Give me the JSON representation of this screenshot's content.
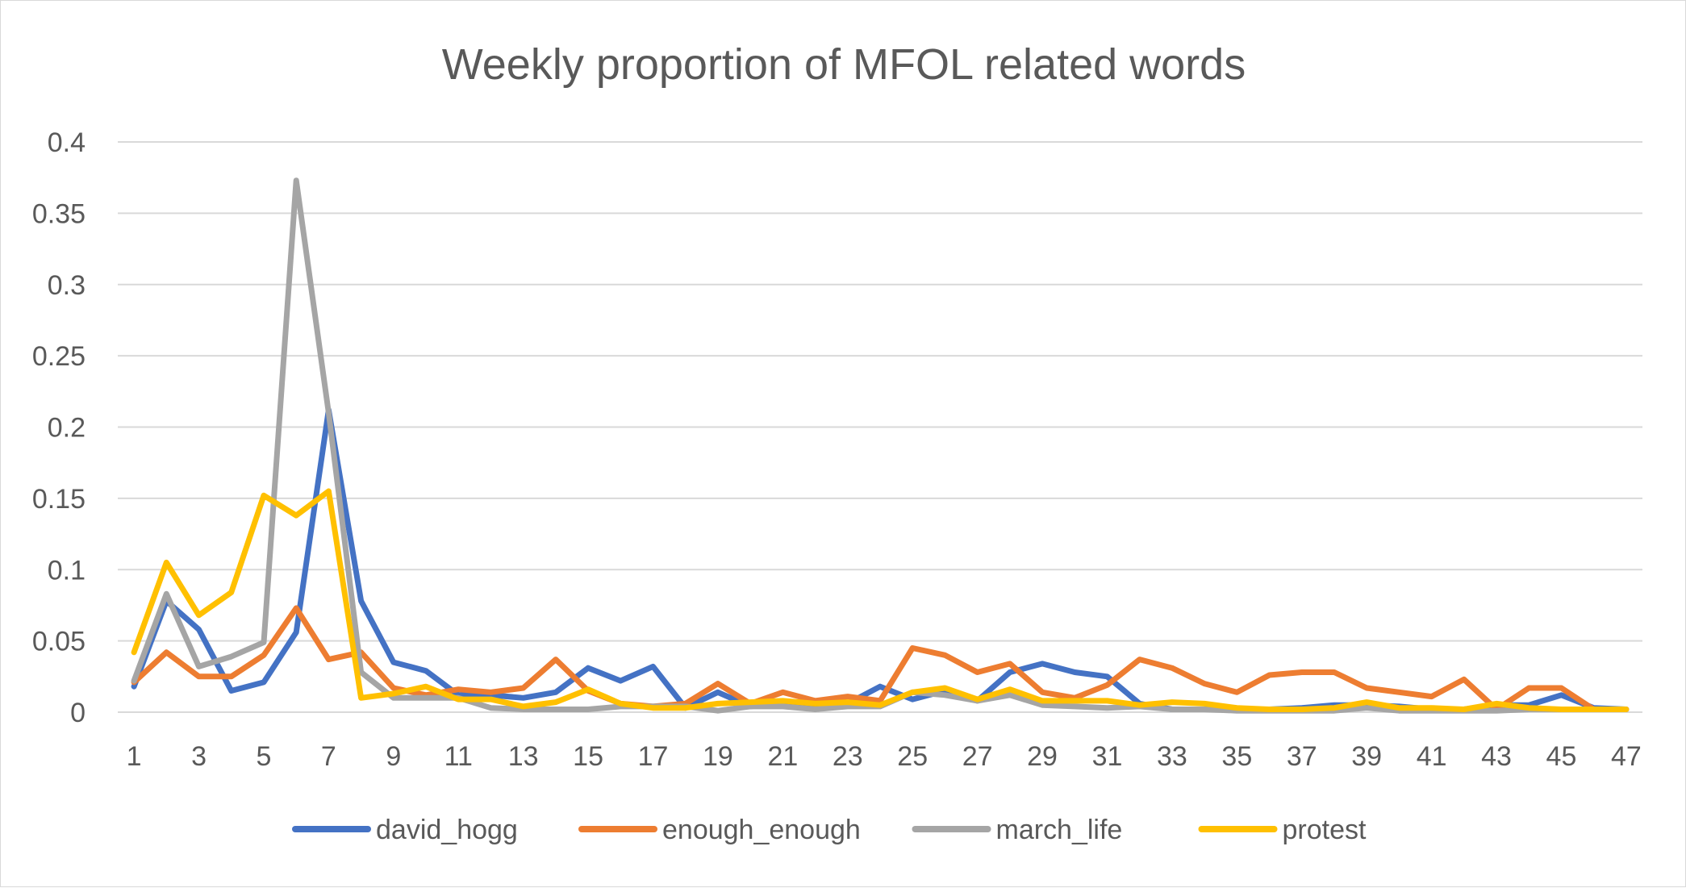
{
  "chart_data": {
    "type": "line",
    "title": "Weekly proportion of MFOL related words",
    "xlabel": "",
    "ylabel": "",
    "ylim": [
      0,
      0.4
    ],
    "yticks": [
      "0",
      "0.05",
      "0.1",
      "0.15",
      "0.2",
      "0.25",
      "0.3",
      "0.35",
      "0.4"
    ],
    "x": [
      1,
      2,
      3,
      4,
      5,
      6,
      7,
      8,
      9,
      10,
      11,
      12,
      13,
      14,
      15,
      16,
      17,
      18,
      19,
      20,
      21,
      22,
      23,
      24,
      25,
      26,
      27,
      28,
      29,
      30,
      31,
      32,
      33,
      34,
      35,
      36,
      37,
      38,
      39,
      40,
      41,
      42,
      43,
      44,
      45,
      46,
      47
    ],
    "xtick_labels": [
      "1",
      "3",
      "5",
      "7",
      "9",
      "11",
      "13",
      "15",
      "17",
      "19",
      "21",
      "23",
      "25",
      "27",
      "29",
      "31",
      "33",
      "35",
      "37",
      "39",
      "41",
      "43",
      "45",
      "47"
    ],
    "grid": true,
    "legend_position": "bottom",
    "series": [
      {
        "name": "david_hogg",
        "color": "#4472C4",
        "values": [
          0.018,
          0.078,
          0.058,
          0.015,
          0.021,
          0.056,
          0.212,
          0.078,
          0.035,
          0.029,
          0.012,
          0.012,
          0.01,
          0.014,
          0.031,
          0.022,
          0.032,
          0.003,
          0.014,
          0.004,
          0.006,
          0.004,
          0.006,
          0.018,
          0.009,
          0.015,
          0.008,
          0.028,
          0.034,
          0.028,
          0.025,
          0.006,
          0.002,
          0.002,
          0.002,
          0.002,
          0.003,
          0.005,
          0.005,
          0.004,
          0.002,
          0.002,
          0.005,
          0.005,
          0.012,
          0.003,
          0.002
        ]
      },
      {
        "name": "enough_enough",
        "color": "#ED7D31",
        "values": [
          0.021,
          0.042,
          0.025,
          0.025,
          0.04,
          0.073,
          0.037,
          0.042,
          0.017,
          0.012,
          0.016,
          0.014,
          0.017,
          0.037,
          0.015,
          0.006,
          0.004,
          0.006,
          0.02,
          0.006,
          0.014,
          0.008,
          0.011,
          0.008,
          0.045,
          0.04,
          0.028,
          0.034,
          0.014,
          0.01,
          0.019,
          0.037,
          0.031,
          0.02,
          0.014,
          0.026,
          0.028,
          0.028,
          0.017,
          0.014,
          0.011,
          0.023,
          0.002,
          0.017,
          0.017,
          0.002,
          0.002
        ]
      },
      {
        "name": "march_life",
        "color": "#A5A5A5",
        "values": [
          0.022,
          0.083,
          0.032,
          0.039,
          0.049,
          0.373,
          0.21,
          0.028,
          0.01,
          0.01,
          0.01,
          0.003,
          0.002,
          0.002,
          0.002,
          0.004,
          0.004,
          0.004,
          0.001,
          0.004,
          0.004,
          0.002,
          0.004,
          0.004,
          0.014,
          0.012,
          0.008,
          0.012,
          0.005,
          0.004,
          0.003,
          0.004,
          0.002,
          0.002,
          0.001,
          0.001,
          0.001,
          0.001,
          0.003,
          0.001,
          0.001,
          0.001,
          0.001,
          0.002,
          0.002,
          0.002,
          0.002
        ]
      },
      {
        "name": "protest",
        "color": "#FFC000",
        "values": [
          0.042,
          0.105,
          0.068,
          0.084,
          0.152,
          0.138,
          0.155,
          0.01,
          0.013,
          0.018,
          0.009,
          0.009,
          0.004,
          0.007,
          0.016,
          0.006,
          0.003,
          0.003,
          0.006,
          0.007,
          0.008,
          0.006,
          0.007,
          0.005,
          0.014,
          0.017,
          0.009,
          0.016,
          0.008,
          0.008,
          0.008,
          0.005,
          0.007,
          0.006,
          0.003,
          0.002,
          0.002,
          0.003,
          0.007,
          0.003,
          0.003,
          0.002,
          0.006,
          0.003,
          0.002,
          0.002,
          0.002
        ]
      }
    ]
  }
}
